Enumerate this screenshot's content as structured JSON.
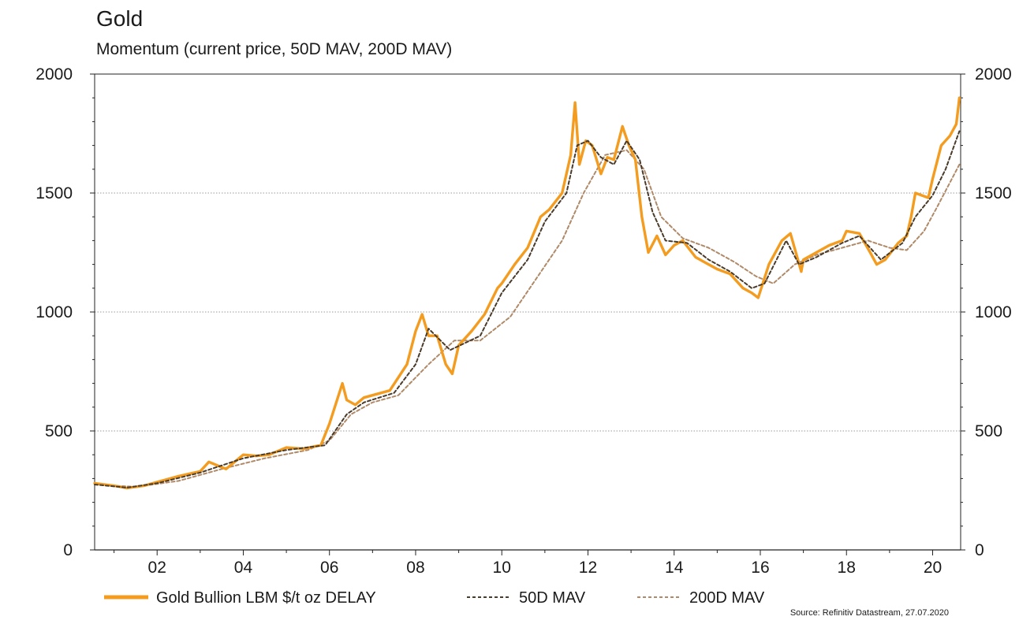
{
  "title": "Gold",
  "subtitle": "Momentum (current price, 50D MAV, 200D MAV)",
  "source": "Source: Refinitiv Datastream, 27.07.2020",
  "chart_data": {
    "type": "line",
    "title": "Gold",
    "subtitle": "Momentum (current price, 50D MAV, 200D MAV)",
    "xlabel": "",
    "ylabel": "",
    "ylim": [
      0,
      2000
    ],
    "xlim": [
      2000.55,
      2020.65
    ],
    "y_ticks": [
      0,
      500,
      1000,
      1500,
      2000
    ],
    "x_ticks": [
      2002,
      2004,
      2006,
      2008,
      2010,
      2012,
      2014,
      2016,
      2018,
      2020
    ],
    "x_tick_labels": [
      "02",
      "04",
      "06",
      "08",
      "10",
      "12",
      "14",
      "16",
      "18",
      "20"
    ],
    "secondary_y_axis": true,
    "grid": "horizontal dotted",
    "legend_position": "bottom",
    "colors": {
      "price": "#f39c1f",
      "mav50": "#4a3b2a",
      "mav200": "#b08a68"
    },
    "series": [
      {
        "name": "Gold Bullion LBM $/t oz DELAY",
        "style": "solid",
        "x": [
          2000.55,
          2001.0,
          2001.3,
          2001.7,
          2002.0,
          2002.5,
          2003.0,
          2003.2,
          2003.6,
          2004.0,
          2004.3,
          2004.6,
          2005.0,
          2005.4,
          2005.8,
          2006.0,
          2006.3,
          2006.4,
          2006.6,
          2006.8,
          2007.0,
          2007.4,
          2007.8,
          2008.0,
          2008.15,
          2008.3,
          2008.5,
          2008.7,
          2008.85,
          2009.0,
          2009.3,
          2009.6,
          2009.9,
          2010.0,
          2010.3,
          2010.6,
          2010.9,
          2011.1,
          2011.4,
          2011.6,
          2011.7,
          2011.8,
          2011.95,
          2012.1,
          2012.3,
          2012.45,
          2012.6,
          2012.8,
          2012.95,
          2013.1,
          2013.25,
          2013.4,
          2013.6,
          2013.8,
          2014.0,
          2014.2,
          2014.5,
          2014.8,
          2015.0,
          2015.3,
          2015.6,
          2015.8,
          2015.95,
          2016.2,
          2016.5,
          2016.7,
          2016.95,
          2017.0,
          2017.3,
          2017.6,
          2017.9,
          2018.0,
          2018.3,
          2018.55,
          2018.7,
          2018.9,
          2019.2,
          2019.4,
          2019.5,
          2019.6,
          2019.9,
          2020.0,
          2020.2,
          2020.4,
          2020.55,
          2020.62
        ],
        "values": [
          280,
          270,
          260,
          270,
          285,
          310,
          330,
          370,
          340,
          400,
          395,
          400,
          430,
          425,
          440,
          530,
          700,
          630,
          610,
          640,
          650,
          670,
          780,
          920,
          990,
          900,
          900,
          780,
          740,
          860,
          920,
          990,
          1100,
          1120,
          1200,
          1270,
          1400,
          1430,
          1500,
          1660,
          1880,
          1620,
          1720,
          1700,
          1580,
          1650,
          1640,
          1780,
          1700,
          1640,
          1400,
          1250,
          1320,
          1240,
          1280,
          1300,
          1230,
          1200,
          1180,
          1160,
          1100,
          1080,
          1060,
          1200,
          1300,
          1330,
          1170,
          1220,
          1250,
          1280,
          1300,
          1340,
          1330,
          1250,
          1200,
          1220,
          1290,
          1320,
          1400,
          1500,
          1480,
          1560,
          1700,
          1740,
          1790,
          1900
        ]
      },
      {
        "name": "50D MAV",
        "style": "dashed",
        "x": [
          2000.55,
          2001.3,
          2002.0,
          2003.0,
          2004.0,
          2005.0,
          2005.9,
          2006.4,
          2006.8,
          2007.5,
          2008.0,
          2008.3,
          2008.8,
          2009.5,
          2010.0,
          2010.6,
          2011.0,
          2011.5,
          2011.75,
          2012.0,
          2012.3,
          2012.6,
          2012.9,
          2013.2,
          2013.5,
          2013.8,
          2014.3,
          2014.8,
          2015.3,
          2015.8,
          2016.1,
          2016.6,
          2016.9,
          2017.3,
          2017.9,
          2018.3,
          2018.8,
          2019.3,
          2019.6,
          2020.0,
          2020.3,
          2020.62
        ],
        "values": [
          275,
          262,
          280,
          325,
          385,
          420,
          440,
          570,
          620,
          660,
          780,
          930,
          840,
          900,
          1080,
          1220,
          1380,
          1500,
          1700,
          1720,
          1650,
          1620,
          1720,
          1640,
          1420,
          1300,
          1290,
          1220,
          1170,
          1100,
          1120,
          1300,
          1200,
          1230,
          1290,
          1320,
          1220,
          1290,
          1400,
          1490,
          1600,
          1760
        ]
      },
      {
        "name": "200D MAV",
        "style": "dashed",
        "x": [
          2000.55,
          2001.5,
          2002.5,
          2003.5,
          2004.5,
          2005.5,
          2006.0,
          2006.5,
          2007.0,
          2007.6,
          2008.3,
          2008.9,
          2009.5,
          2010.2,
          2010.8,
          2011.4,
          2011.9,
          2012.4,
          2012.9,
          2013.3,
          2013.7,
          2014.2,
          2014.8,
          2015.4,
          2015.9,
          2016.3,
          2016.8,
          2017.3,
          2017.9,
          2018.5,
          2019.0,
          2019.4,
          2019.8,
          2020.1,
          2020.62
        ],
        "values": [
          275,
          265,
          290,
          340,
          385,
          420,
          460,
          570,
          620,
          650,
          780,
          880,
          880,
          980,
          1140,
          1300,
          1500,
          1660,
          1680,
          1600,
          1400,
          1310,
          1270,
          1210,
          1150,
          1120,
          1200,
          1240,
          1270,
          1300,
          1270,
          1260,
          1340,
          1440,
          1620
        ]
      }
    ]
  },
  "legend": [
    {
      "label": "Gold Bullion LBM $/t oz DELAY"
    },
    {
      "label": "50D MAV"
    },
    {
      "label": "200D MAV"
    }
  ]
}
